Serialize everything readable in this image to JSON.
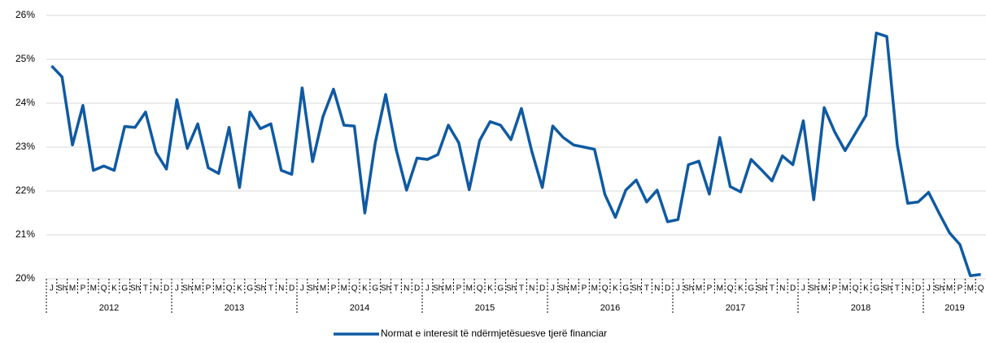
{
  "chart_data": {
    "type": "line",
    "categories": [
      "J",
      "Sh",
      "M",
      "P",
      "M",
      "Q",
      "K",
      "G",
      "Sh",
      "T",
      "N",
      "D",
      "J",
      "Sh",
      "M",
      "P",
      "M",
      "Q",
      "K",
      "G",
      "Sh",
      "T",
      "N",
      "D",
      "J",
      "Sh",
      "M",
      "P",
      "M",
      "Q",
      "K",
      "G",
      "Sh",
      "T",
      "N",
      "D",
      "J",
      "Sh",
      "M",
      "P",
      "M",
      "Q",
      "K",
      "G",
      "Sh",
      "T",
      "N",
      "D",
      "J",
      "Sh",
      "M",
      "P",
      "M",
      "Q",
      "K",
      "G",
      "Sh",
      "T",
      "N",
      "D",
      "J",
      "Sh",
      "M",
      "P",
      "M",
      "Q",
      "K",
      "G",
      "Sh",
      "T",
      "N",
      "D",
      "J",
      "Sh",
      "M",
      "P",
      "M",
      "Q",
      "K",
      "G",
      "Sh",
      "T",
      "N",
      "D",
      "J",
      "Sh",
      "M",
      "P",
      "M",
      "Q"
    ],
    "years": [
      "2012",
      "2013",
      "2014",
      "2015",
      "2016",
      "2017",
      "2018",
      "2019"
    ],
    "series": [
      {
        "name": "Normat e interesit të ndërmjetësuesve tjerë financiar",
        "color": "#0f5aa3",
        "values": [
          24.85,
          24.6,
          23.05,
          23.95,
          22.47,
          22.57,
          22.47,
          23.47,
          23.45,
          23.8,
          22.88,
          22.5,
          24.08,
          22.97,
          23.53,
          22.53,
          22.4,
          23.45,
          22.08,
          23.8,
          23.42,
          23.53,
          22.47,
          22.38,
          24.35,
          22.67,
          23.7,
          24.32,
          23.5,
          23.48,
          21.5,
          23.1,
          24.2,
          22.95,
          22.02,
          22.75,
          22.72,
          22.83,
          23.5,
          23.1,
          22.03,
          23.15,
          23.58,
          23.5,
          23.17,
          23.88,
          22.9,
          22.08,
          23.48,
          23.22,
          23.05,
          23.0,
          22.95,
          21.92,
          21.4,
          22.02,
          22.25,
          21.75,
          22.02,
          21.3,
          21.35,
          22.6,
          22.68,
          21.93,
          23.22,
          22.1,
          21.98,
          22.72,
          22.48,
          22.23,
          22.8,
          22.6,
          23.6,
          21.8,
          23.9,
          23.35,
          22.92,
          23.32,
          23.72,
          25.6,
          25.52,
          23.05,
          21.72,
          21.75,
          21.97,
          21.5,
          21.05,
          20.78,
          20.07,
          20.1
        ]
      }
    ],
    "ylim": [
      20,
      26
    ],
    "yticks": [
      {
        "value": 20,
        "label": "20%"
      },
      {
        "value": 21,
        "label": "21%"
      },
      {
        "value": 22,
        "label": "22%"
      },
      {
        "value": 23,
        "label": "23%"
      },
      {
        "value": 24,
        "label": "24%"
      },
      {
        "value": 25,
        "label": "25%"
      },
      {
        "value": 26,
        "label": "26%"
      }
    ],
    "grid": true,
    "legend": "bottom"
  }
}
